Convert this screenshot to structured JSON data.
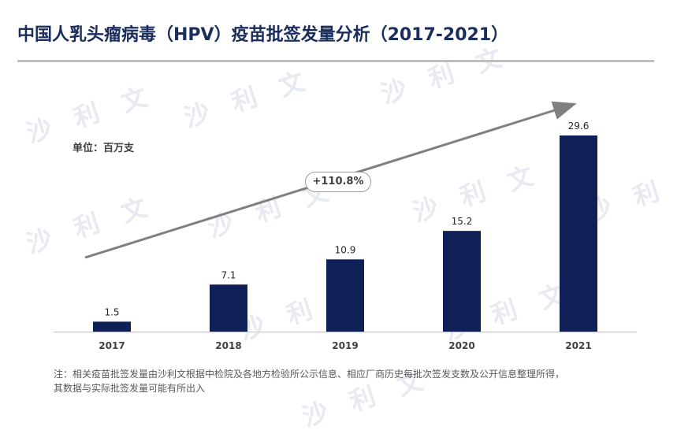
{
  "title": "中国人乳头瘤病毒（HPV）疫苗批签发量分析（2017-2021）",
  "unit": "单位：百万支",
  "growth_label": "+110.8%",
  "watermark": "沙 利 文",
  "note": {
    "line1": "注：相关疫苗批签发量由沙利文根据中检院及各地方检验所公示信息、相应厂商历史每批次签发支数及公开信息整理所得，",
    "line2": "其数据与实际批签发量可能有所出入"
  },
  "colors": {
    "bar": "#0f2056",
    "title": "#1a2d5c",
    "arrow": "#808080",
    "rule": "#bfbfbf"
  },
  "chart_data": {
    "type": "bar",
    "categories": [
      "2017",
      "2018",
      "2019",
      "2020",
      "2021"
    ],
    "values": [
      1.5,
      7.1,
      10.9,
      15.2,
      29.6
    ],
    "ylabel": "百万支",
    "ylim": [
      0,
      29.6
    ],
    "grid": false,
    "data_labels": true
  }
}
